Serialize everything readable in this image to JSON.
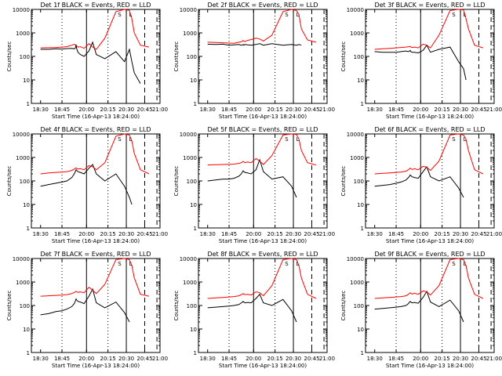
{
  "colors": {
    "events": "#000000",
    "lld": "#ff0000",
    "background": "#ffffff",
    "axes": "#000000"
  },
  "chart_data": [
    {
      "type": "line",
      "title": "Det 1f BLACK = Events, RED = LLD",
      "xlabel": "Start Time (16-Apr-13 18:24:00)",
      "ylabel": "Counts/sec",
      "yscale": "log",
      "ylim": [
        1,
        10000
      ],
      "xtick_labels": [
        "18:30",
        "18:45",
        "20:00",
        "20:15",
        "20:30",
        "20:45",
        "21:00"
      ],
      "ytick_labels": [
        "1",
        "10",
        "100",
        "1000",
        "10000"
      ],
      "x": [
        0.15,
        0.28,
        0.4,
        0.5,
        0.58,
        0.66,
        0.7,
        0.72,
        0.73,
        0.74,
        0.76,
        0.8,
        0.86,
        0.94,
        1.0,
        1.06,
        1.2,
        1.38,
        1.52,
        1.6,
        1.64,
        1.68,
        1.78,
        1.92
      ],
      "series": [
        {
          "name": "BLACK = Events",
          "values": [
            200,
            200,
            210,
            205,
            215,
            220,
            210,
            230,
            320,
            210,
            150,
            120,
            100,
            170,
            400,
            120,
            80,
            160,
            60,
            200,
            60,
            20,
            7,
            null
          ]
        },
        {
          "name": "RED = LLD",
          "values": [
            230,
            235,
            240,
            250,
            260,
            300,
            330,
            300,
            310,
            280,
            250,
            260,
            220,
            350,
            250,
            200,
            600,
            8000,
            10000,
            9000,
            4000,
            1000,
            300,
            250
          ]
        }
      ],
      "markers": [
        {
          "label": "S",
          "x": 1.44
        },
        {
          "label": "L",
          "x": 1.62
        }
      ]
    },
    {
      "type": "line",
      "title": "Det 2f BLACK = Events, RED = LLD",
      "xlabel": "Start Time (16-Apr-13 18:24:00)",
      "ylabel": "Counts/sec",
      "yscale": "log",
      "ylim": [
        1,
        10000
      ],
      "xtick_labels": [
        "18:30",
        "18:45",
        "20:00",
        "20:15",
        "20:30",
        "20:45",
        "21:00"
      ],
      "ytick_labels": [
        "1",
        "10",
        "100",
        "1000",
        "10000"
      ],
      "x": [
        0.15,
        0.28,
        0.4,
        0.5,
        0.58,
        0.66,
        0.7,
        0.72,
        0.73,
        0.74,
        0.76,
        0.8,
        0.86,
        0.94,
        1.0,
        1.06,
        1.2,
        1.38,
        1.52,
        1.6,
        1.64,
        1.68,
        1.78,
        1.92
      ],
      "series": [
        {
          "name": "BLACK = Events",
          "values": [
            330,
            320,
            330,
            300,
            310,
            320,
            300,
            310,
            320,
            300,
            320,
            310,
            300,
            320,
            350,
            300,
            350,
            300,
            320,
            300,
            320,
            300,
            null,
            null
          ]
        },
        {
          "name": "RED = LLD",
          "values": [
            400,
            390,
            380,
            370,
            360,
            400,
            420,
            450,
            470,
            450,
            430,
            480,
            520,
            600,
            550,
            450,
            800,
            8000,
            10000,
            9000,
            6000,
            1500,
            500,
            400
          ]
        }
      ],
      "markers": [
        {
          "label": "S",
          "x": 1.44
        },
        {
          "label": "L",
          "x": 1.62
        }
      ]
    },
    {
      "type": "line",
      "title": "Det 3f BLACK = Events, RED = LLD",
      "xlabel": "Start Time (16-Apr-13 18:24:00)",
      "ylabel": "Counts/sec",
      "yscale": "log",
      "ylim": [
        1,
        10000
      ],
      "xtick_labels": [
        "18:30",
        "18:45",
        "20:00",
        "20:15",
        "20:30",
        "20:45",
        "21:00"
      ],
      "ytick_labels": [
        "1",
        "10",
        "100",
        "1000",
        "10000"
      ],
      "x": [
        0.15,
        0.28,
        0.4,
        0.5,
        0.58,
        0.66,
        0.7,
        0.72,
        0.73,
        0.74,
        0.76,
        0.8,
        0.86,
        0.94,
        1.0,
        1.06,
        1.2,
        1.38,
        1.52,
        1.6,
        1.64,
        1.68,
        1.78,
        1.92
      ],
      "series": [
        {
          "name": "BLACK = Events",
          "values": [
            160,
            150,
            150,
            150,
            160,
            170,
            160,
            170,
            180,
            160,
            150,
            150,
            140,
            180,
            300,
            150,
            200,
            250,
            60,
            30,
            10,
            null,
            null,
            null
          ]
        },
        {
          "name": "RED = LLD",
          "values": [
            200,
            210,
            220,
            230,
            240,
            250,
            260,
            260,
            270,
            250,
            240,
            250,
            230,
            330,
            300,
            230,
            800,
            9000,
            10000,
            9500,
            4000,
            1500,
            300,
            230
          ]
        }
      ],
      "markers": [
        {
          "label": "S",
          "x": 1.44
        },
        {
          "label": "L",
          "x": 1.62
        }
      ]
    },
    {
      "type": "line",
      "title": "Det 4f BLACK = Events, RED = LLD",
      "xlabel": "Start Time (16-Apr-13 18:24:00)",
      "ylabel": "Counts/sec",
      "yscale": "log",
      "ylim": [
        1,
        10000
      ],
      "xtick_labels": [
        "18:30",
        "18:45",
        "20:00",
        "20:15",
        "20:30",
        "20:45",
        "21:00"
      ],
      "ytick_labels": [
        "1",
        "10",
        "100",
        "1000",
        "10000"
      ],
      "x": [
        0.15,
        0.28,
        0.4,
        0.5,
        0.58,
        0.66,
        0.7,
        0.72,
        0.73,
        0.74,
        0.76,
        0.8,
        0.86,
        0.94,
        1.0,
        1.06,
        1.2,
        1.38,
        1.52,
        1.6,
        1.64,
        1.68,
        1.78,
        1.92
      ],
      "series": [
        {
          "name": "BLACK = Events",
          "values": [
            60,
            70,
            80,
            90,
            100,
            140,
            200,
            260,
            300,
            280,
            250,
            230,
            200,
            350,
            500,
            200,
            100,
            200,
            60,
            20,
            10,
            null,
            null,
            null
          ]
        },
        {
          "name": "RED = LLD",
          "values": [
            200,
            220,
            230,
            240,
            250,
            280,
            320,
            350,
            360,
            340,
            320,
            330,
            300,
            450,
            400,
            300,
            600,
            8000,
            10000,
            9000,
            5000,
            1500,
            300,
            200
          ]
        }
      ],
      "markers": [
        {
          "label": "S",
          "x": 1.44
        },
        {
          "label": "L",
          "x": 1.62
        }
      ]
    },
    {
      "type": "line",
      "title": "Det 5f BLACK = Events, RED = LLD",
      "xlabel": "Start Time (16-Apr-13 18:24:00)",
      "ylabel": "Counts/sec",
      "yscale": "log",
      "ylim": [
        1,
        10000
      ],
      "xtick_labels": [
        "18:30",
        "18:45",
        "20:00",
        "20:15",
        "20:30",
        "20:45",
        "21:00"
      ],
      "ytick_labels": [
        "1",
        "10",
        "100",
        "1000",
        "10000"
      ],
      "x": [
        0.15,
        0.28,
        0.4,
        0.5,
        0.58,
        0.66,
        0.7,
        0.72,
        0.73,
        0.74,
        0.76,
        0.8,
        0.86,
        0.94,
        1.0,
        1.06,
        1.2,
        1.38,
        1.52,
        1.6,
        1.64,
        1.68,
        1.78,
        1.92
      ],
      "series": [
        {
          "name": "BLACK = Events",
          "values": [
            100,
            110,
            120,
            120,
            130,
            160,
            200,
            250,
            270,
            250,
            230,
            220,
            200,
            300,
            800,
            250,
            120,
            150,
            60,
            20,
            null,
            null,
            null,
            null
          ]
        },
        {
          "name": "RED = LLD",
          "values": [
            480,
            490,
            500,
            510,
            520,
            560,
            600,
            650,
            680,
            650,
            600,
            640,
            600,
            900,
            700,
            500,
            1200,
            9000,
            10000,
            9500,
            6000,
            2000,
            600,
            480
          ]
        }
      ],
      "markers": [
        {
          "label": "S",
          "x": 1.44
        },
        {
          "label": "L",
          "x": 1.62
        }
      ]
    },
    {
      "type": "line",
      "title": "Det 6f BLACK = Events, RED = LLD",
      "xlabel": "Start Time (16-Apr-13 18:24:00)",
      "ylabel": "Counts/sec",
      "yscale": "log",
      "ylim": [
        1,
        10000
      ],
      "xtick_labels": [
        "18:30",
        "18:45",
        "20:00",
        "20:15",
        "20:30",
        "20:45",
        "21:00"
      ],
      "ytick_labels": [
        "1",
        "10",
        "100",
        "1000",
        "10000"
      ],
      "x": [
        0.15,
        0.28,
        0.4,
        0.5,
        0.58,
        0.66,
        0.7,
        0.72,
        0.73,
        0.74,
        0.76,
        0.8,
        0.86,
        0.94,
        1.0,
        1.06,
        1.2,
        1.38,
        1.52,
        1.6,
        1.64,
        1.68,
        1.78,
        1.92
      ],
      "series": [
        {
          "name": "BLACK = Events",
          "values": [
            60,
            65,
            70,
            80,
            90,
            110,
            140,
            160,
            180,
            170,
            150,
            140,
            130,
            250,
            400,
            150,
            100,
            150,
            50,
            20,
            null,
            null,
            null,
            null
          ]
        },
        {
          "name": "RED = LLD",
          "values": [
            200,
            210,
            220,
            230,
            240,
            260,
            300,
            330,
            350,
            330,
            310,
            330,
            300,
            420,
            380,
            280,
            700,
            9000,
            10000,
            9000,
            6000,
            2000,
            300,
            200
          ]
        }
      ],
      "markers": [
        {
          "label": "S",
          "x": 1.44
        },
        {
          "label": "L",
          "x": 1.62
        }
      ]
    },
    {
      "type": "line",
      "title": "Det 7f BLACK = Events, RED = LLD",
      "xlabel": "Start Time (16-Apr-13 18:24:00)",
      "ylabel": "Counts/sec",
      "yscale": "log",
      "ylim": [
        1,
        10000
      ],
      "xtick_labels": [
        "18:30",
        "18:45",
        "20:00",
        "20:15",
        "20:30",
        "20:45",
        "21:00"
      ],
      "ytick_labels": [
        "1",
        "10",
        "100",
        "1000",
        "10000"
      ],
      "x": [
        0.15,
        0.28,
        0.4,
        0.5,
        0.58,
        0.66,
        0.7,
        0.72,
        0.73,
        0.74,
        0.76,
        0.8,
        0.86,
        0.94,
        1.0,
        1.06,
        1.2,
        1.38,
        1.52,
        1.6,
        1.64,
        1.68,
        1.78,
        1.92
      ],
      "series": [
        {
          "name": "BLACK = Events",
          "values": [
            40,
            45,
            55,
            60,
            70,
            90,
            120,
            160,
            190,
            170,
            150,
            140,
            120,
            250,
            500,
            130,
            80,
            140,
            50,
            20,
            null,
            null,
            null,
            null
          ]
        },
        {
          "name": "RED = LLD",
          "values": [
            250,
            260,
            270,
            280,
            290,
            320,
            360,
            380,
            400,
            380,
            360,
            380,
            350,
            600,
            450,
            320,
            800,
            9000,
            10000,
            9000,
            5000,
            1500,
            300,
            250
          ]
        }
      ],
      "markers": [
        {
          "label": "S",
          "x": 1.44
        },
        {
          "label": "L",
          "x": 1.62
        }
      ]
    },
    {
      "type": "line",
      "title": "Det 8f BLACK = Events, RED = LLD",
      "xlabel": "Start Time (16-Apr-13 18:24:00)",
      "ylabel": "Counts/sec",
      "yscale": "log",
      "ylim": [
        1,
        10000
      ],
      "xtick_labels": [
        "18:30",
        "18:45",
        "20:00",
        "20:15",
        "20:30",
        "20:45",
        "21:00"
      ],
      "ytick_labels": [
        "1",
        "10",
        "100",
        "1000",
        "10000"
      ],
      "x": [
        0.15,
        0.28,
        0.4,
        0.5,
        0.58,
        0.66,
        0.7,
        0.72,
        0.73,
        0.74,
        0.76,
        0.8,
        0.86,
        0.94,
        1.0,
        1.06,
        1.2,
        1.38,
        1.52,
        1.6,
        1.64,
        1.68,
        1.78,
        1.92
      ],
      "series": [
        {
          "name": "BLACK = Events",
          "values": [
            80,
            85,
            90,
            95,
            100,
            110,
            130,
            140,
            150,
            140,
            130,
            135,
            130,
            200,
            300,
            130,
            100,
            180,
            60,
            20,
            null,
            null,
            null,
            null
          ]
        },
        {
          "name": "RED = LLD",
          "values": [
            200,
            210,
            220,
            230,
            240,
            260,
            290,
            310,
            320,
            300,
            290,
            300,
            280,
            380,
            350,
            260,
            700,
            9000,
            10000,
            9000,
            5000,
            1500,
            300,
            200
          ]
        }
      ],
      "markers": [
        {
          "label": "S",
          "x": 1.44
        },
        {
          "label": "L",
          "x": 1.62
        }
      ]
    },
    {
      "type": "line",
      "title": "Det 9f BLACK = Events, RED = LLD",
      "xlabel": "Start Time (16-Apr-13 18:24:00)",
      "ylabel": "Counts/sec",
      "yscale": "log",
      "ylim": [
        1,
        10000
      ],
      "xtick_labels": [
        "18:30",
        "18:45",
        "20:00",
        "20:15",
        "20:30",
        "20:45",
        "21:00"
      ],
      "ytick_labels": [
        "1",
        "10",
        "100",
        "1000",
        "10000"
      ],
      "x": [
        0.15,
        0.28,
        0.4,
        0.5,
        0.58,
        0.66,
        0.7,
        0.72,
        0.73,
        0.74,
        0.76,
        0.8,
        0.86,
        0.94,
        1.0,
        1.06,
        1.2,
        1.38,
        1.52,
        1.6,
        1.64,
        1.68,
        1.78,
        1.92
      ],
      "series": [
        {
          "name": "BLACK = Events",
          "values": [
            70,
            75,
            80,
            85,
            90,
            100,
            120,
            140,
            150,
            140,
            130,
            135,
            125,
            220,
            400,
            140,
            90,
            170,
            60,
            20,
            null,
            null,
            null,
            null
          ]
        },
        {
          "name": "RED = LLD",
          "values": [
            200,
            210,
            220,
            230,
            240,
            260,
            300,
            330,
            350,
            330,
            310,
            330,
            300,
            420,
            380,
            280,
            700,
            9000,
            10000,
            9000,
            5000,
            1500,
            300,
            200
          ]
        }
      ],
      "markers": [
        {
          "label": "S",
          "x": 1.44
        },
        {
          "label": "L",
          "x": 1.62
        }
      ]
    }
  ]
}
